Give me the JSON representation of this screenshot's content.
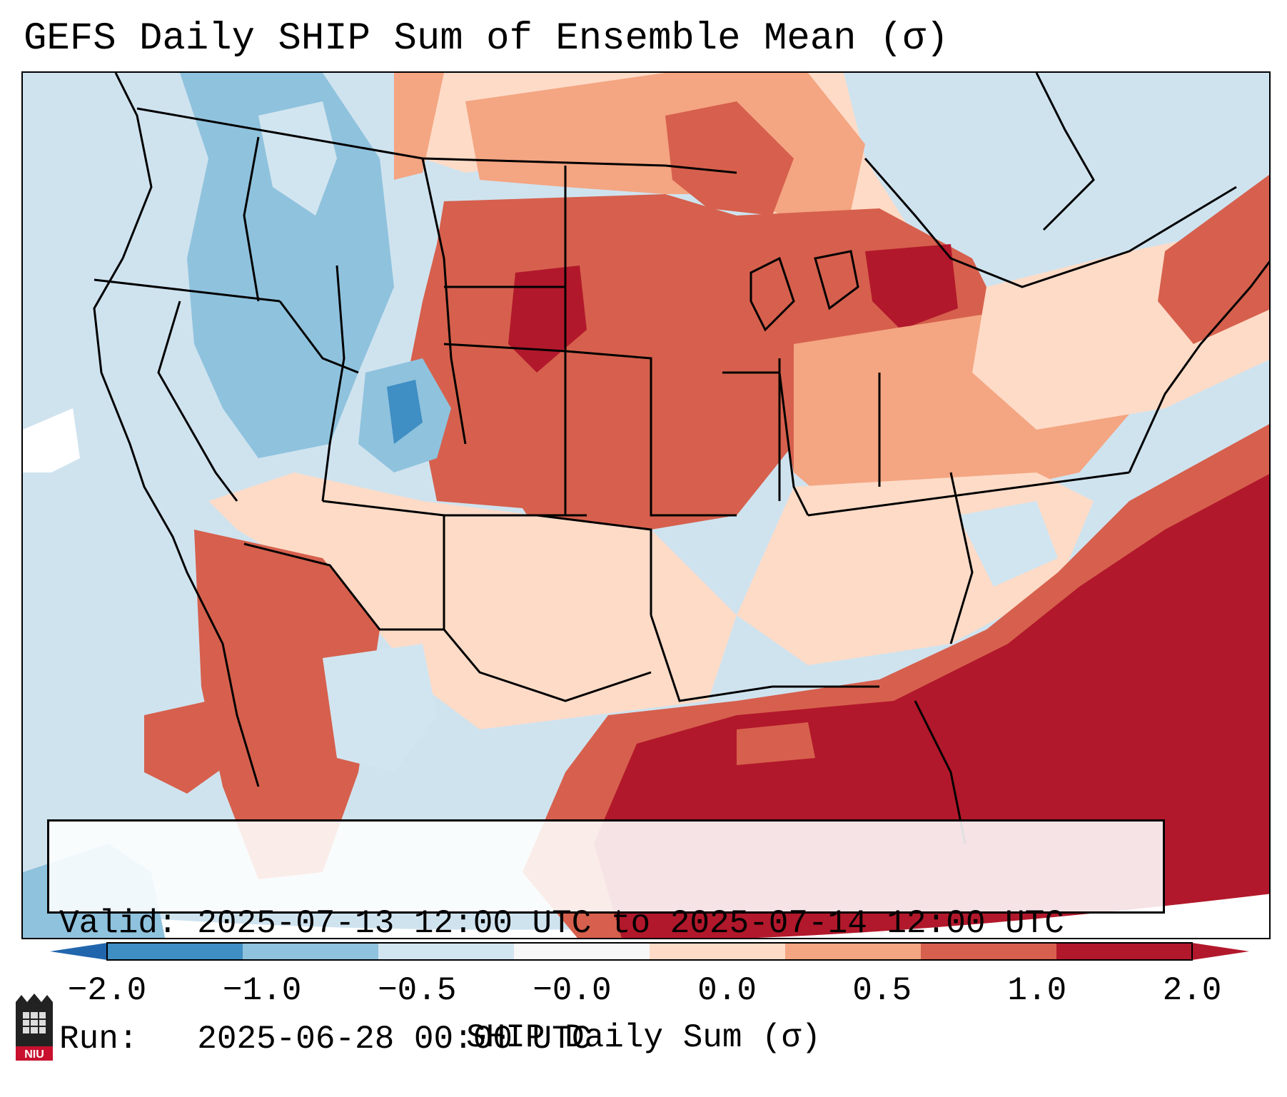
{
  "title": "GEFS Daily SHIP Sum of Ensemble Mean (σ)",
  "info": {
    "valid_label": "Valid:",
    "valid_value": "2025-07-13 12:00 UTC to 2025-07-14 12:00 UTC",
    "run_label": "Run:",
    "run_value": "2025-06-28 00:00 UTC"
  },
  "colorbar": {
    "label": "SHIP Daily Sum (σ)",
    "ticks": [
      "−2.0",
      "−1.0",
      "−0.5",
      "−0.0",
      "0.0",
      "0.5",
      "1.0",
      "2.0"
    ],
    "colors": [
      "#3f8ec4",
      "#8fc2dd",
      "#d1e5f0",
      "#f7f7f7",
      "#fddbc7",
      "#f4a582",
      "#d6604d",
      "#b2182b"
    ],
    "extend_low_color": "#2166ac",
    "extend_high_color": "#b2182b"
  },
  "logo_text": "NIU"
}
